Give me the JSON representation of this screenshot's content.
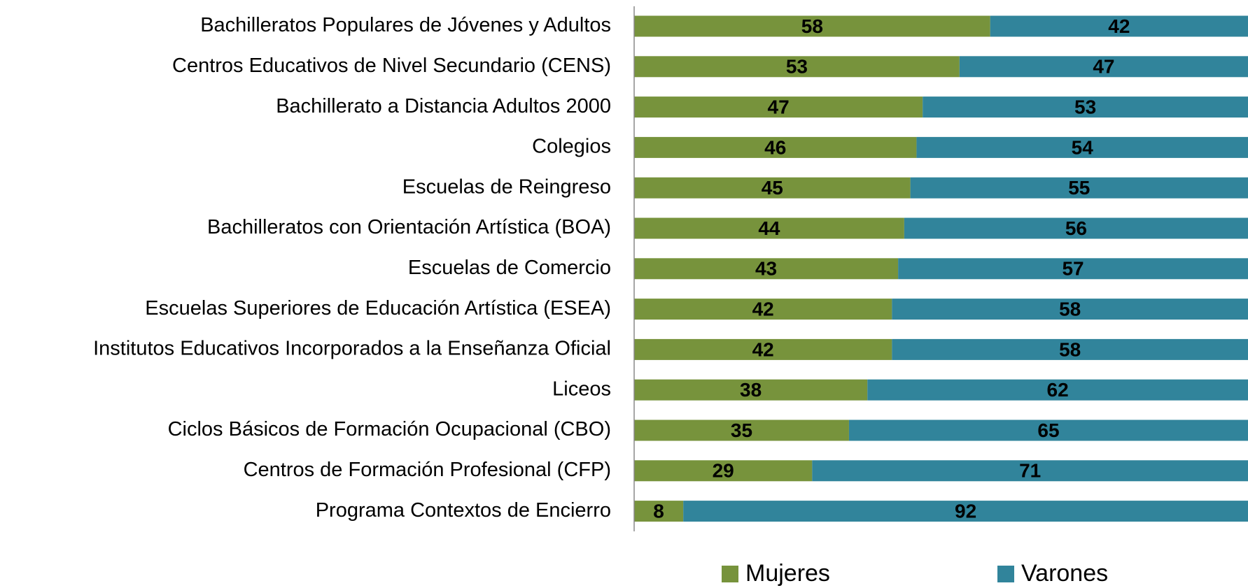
{
  "chart_data": {
    "type": "stacked_barh",
    "categories": [
      "Bachilleratos Populares de Jóvenes y Adultos",
      "Centros Educativos de Nivel Secundario (CENS)",
      "Bachillerato a Distancia Adultos 2000",
      "Colegios",
      "Escuelas de Reingreso",
      "Bachilleratos con Orientación Artística (BOA)",
      "Escuelas de Comercio",
      "Escuelas Superiores de Educación Artística (ESEA)",
      "Institutos Educativos Incorporados a la Enseñanza Oficial",
      "Liceos",
      "Ciclos Básicos de Formación Ocupacional (CBO)",
      "Centros de Formación Profesional (CFP)",
      "Programa Contextos de Encierro"
    ],
    "series": [
      {
        "name": "Mujeres",
        "color": "#77933c",
        "values": [
          58,
          53,
          47,
          46,
          45,
          44,
          43,
          42,
          42,
          38,
          35,
          29,
          8
        ]
      },
      {
        "name": "Varones",
        "color": "#31849b",
        "values": [
          42,
          47,
          53,
          54,
          55,
          56,
          57,
          58,
          58,
          62,
          65,
          71,
          92
        ]
      }
    ],
    "xlim": [
      0,
      100
    ]
  }
}
